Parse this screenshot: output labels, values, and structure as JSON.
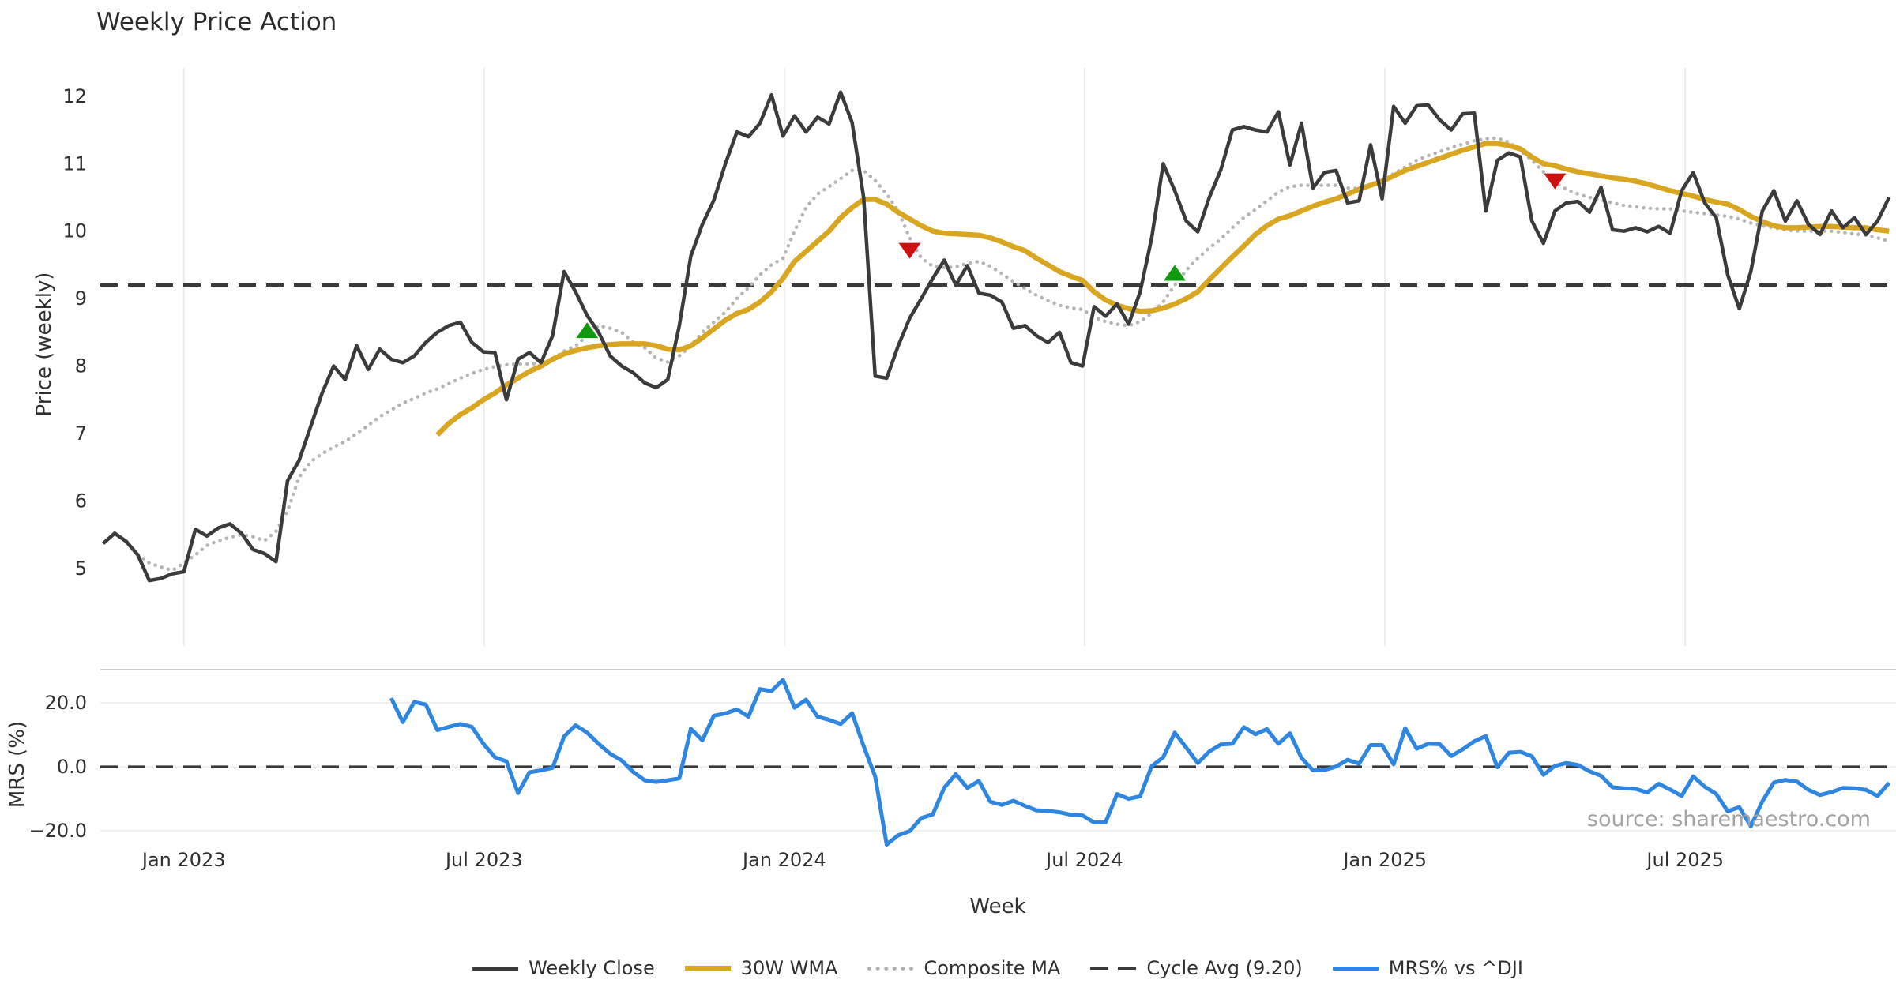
{
  "title": "Weekly Price Action",
  "watermark": "source: sharemaestro.com",
  "chart_data": {
    "type": "line",
    "x_axis": {
      "label": "Week",
      "unit": "weeks since first plotted week (late 2022)",
      "tick_labels": [
        "Jan 2023",
        "Jul 2023",
        "Jan 2024",
        "Jul 2024",
        "Jan 2025",
        "Jul 2025"
      ],
      "tick_weeks": [
        7.0,
        33.06,
        59.12,
        85.18,
        111.25,
        137.31
      ],
      "range_weeks": [
        -0.25,
        155.6
      ],
      "grid_color": "#ececec"
    },
    "price_panel": {
      "ylabel": "Price (weekly)",
      "ylim": [
        3.85,
        12.42
      ],
      "yticks": [
        12,
        11,
        10,
        9,
        8,
        7,
        6,
        5
      ],
      "grid": "vertical-only",
      "series": [
        {
          "name": "Weekly Close",
          "color": "#3b3b3b",
          "style": "solid",
          "width": 4.5,
          "start_week": 0,
          "values": [
            5.37,
            5.52,
            5.4,
            5.2,
            4.82,
            4.85,
            4.92,
            4.95,
            5.58,
            5.48,
            5.6,
            5.66,
            5.52,
            5.28,
            5.22,
            5.1,
            6.3,
            6.6,
            7.1,
            7.6,
            8.0,
            7.8,
            8.3,
            7.95,
            8.25,
            8.1,
            8.05,
            8.15,
            8.35,
            8.5,
            8.6,
            8.65,
            8.35,
            8.21,
            8.2,
            7.5,
            8.1,
            8.2,
            8.05,
            8.45,
            9.4,
            9.1,
            8.75,
            8.5,
            8.15,
            8.0,
            7.9,
            7.75,
            7.68,
            7.8,
            8.6,
            9.63,
            10.1,
            10.46,
            11.0,
            11.47,
            11.4,
            11.6,
            12.02,
            11.41,
            11.71,
            11.47,
            11.69,
            11.59,
            12.06,
            11.61,
            10.5,
            7.85,
            7.82,
            8.3,
            8.71,
            9.0,
            9.3,
            9.57,
            9.2,
            9.49,
            9.08,
            9.05,
            8.95,
            8.56,
            8.6,
            8.45,
            8.35,
            8.5,
            8.05,
            8.0,
            8.88,
            8.74,
            8.92,
            8.62,
            9.1,
            9.9,
            11.0,
            10.6,
            10.15,
            9.99,
            10.5,
            10.91,
            11.5,
            11.55,
            11.5,
            11.47,
            11.77,
            10.98,
            11.6,
            10.64,
            10.87,
            10.9,
            10.42,
            10.45,
            11.28,
            10.48,
            11.85,
            11.6,
            11.86,
            11.87,
            11.65,
            11.5,
            11.74,
            11.75,
            10.3,
            11.05,
            11.16,
            11.1,
            10.15,
            9.82,
            10.3,
            10.42,
            10.44,
            10.28,
            10.65,
            10.02,
            10.0,
            10.05,
            9.99,
            10.07,
            9.97,
            10.6,
            10.87,
            10.42,
            10.2,
            9.35,
            8.85,
            9.4,
            10.3,
            10.6,
            10.15,
            10.45,
            10.1,
            9.95,
            10.3,
            10.05,
            10.2,
            9.95,
            10.15,
            10.5
          ]
        },
        {
          "name": "30W WMA",
          "color": "#d9a621",
          "style": "solid",
          "width": 6.5,
          "start_week": 29,
          "values": [
            6.98,
            7.15,
            7.28,
            7.38,
            7.5,
            7.6,
            7.72,
            7.82,
            7.92,
            8.0,
            8.1,
            8.18,
            8.23,
            8.27,
            8.3,
            8.32,
            8.33,
            8.33,
            8.33,
            8.3,
            8.25,
            8.24,
            8.3,
            8.42,
            8.55,
            8.68,
            8.78,
            8.84,
            8.95,
            9.1,
            9.3,
            9.55,
            9.7,
            9.85,
            10.0,
            10.2,
            10.35,
            10.47,
            10.47,
            10.4,
            10.28,
            10.18,
            10.08,
            10.0,
            9.97,
            9.96,
            9.95,
            9.94,
            9.9,
            9.84,
            9.77,
            9.71,
            9.6,
            9.5,
            9.4,
            9.33,
            9.27,
            9.1,
            8.98,
            8.9,
            8.85,
            8.81,
            8.82,
            8.86,
            8.92,
            9.0,
            9.1,
            9.28,
            9.45,
            9.62,
            9.78,
            9.95,
            10.08,
            10.18,
            10.23,
            10.3,
            10.37,
            10.43,
            10.48,
            10.55,
            10.62,
            10.68,
            10.74,
            10.82,
            10.9,
            10.96,
            11.02,
            11.08,
            11.14,
            11.2,
            11.25,
            11.3,
            11.3,
            11.27,
            11.22,
            11.1,
            11.0,
            10.97,
            10.92,
            10.88,
            10.85,
            10.82,
            10.79,
            10.77,
            10.74,
            10.7,
            10.65,
            10.6,
            10.56,
            10.52,
            10.47,
            10.43,
            10.4,
            10.32,
            10.22,
            10.14,
            10.08,
            10.05,
            10.05,
            10.06,
            10.07,
            10.07,
            10.06,
            10.05,
            10.05,
            10.02,
            10.0
          ]
        },
        {
          "name": "Composite MA",
          "color": "#b5b5b5",
          "style": "dotted",
          "width": 4.5,
          "start_week": 3,
          "values": [
            5.2,
            5.08,
            5.02,
            4.97,
            5.08,
            5.2,
            5.34,
            5.41,
            5.46,
            5.5,
            5.47,
            5.41,
            5.55,
            5.85,
            6.35,
            6.58,
            6.7,
            6.8,
            6.88,
            7.0,
            7.12,
            7.25,
            7.35,
            7.45,
            7.52,
            7.6,
            7.66,
            7.74,
            7.82,
            7.89,
            7.95,
            7.99,
            8.02,
            8.03,
            8.03,
            8.04,
            8.1,
            8.22,
            8.3,
            8.45,
            8.6,
            8.56,
            8.5,
            8.35,
            8.27,
            8.12,
            8.06,
            8.15,
            8.3,
            8.5,
            8.65,
            8.8,
            9.0,
            9.16,
            9.35,
            9.5,
            9.6,
            10.0,
            10.35,
            10.55,
            10.66,
            10.78,
            10.9,
            10.9,
            10.75,
            10.55,
            10.3,
            9.9,
            9.6,
            9.48,
            9.46,
            9.47,
            9.52,
            9.55,
            9.48,
            9.37,
            9.25,
            9.15,
            9.05,
            8.97,
            8.9,
            8.86,
            8.84,
            8.72,
            8.66,
            8.62,
            8.6,
            8.66,
            8.78,
            8.95,
            9.2,
            9.42,
            9.6,
            9.75,
            9.88,
            10.05,
            10.2,
            10.32,
            10.45,
            10.58,
            10.66,
            10.68,
            10.68,
            10.68,
            10.68,
            10.64,
            10.63,
            10.67,
            10.75,
            10.85,
            10.95,
            11.05,
            11.12,
            11.18,
            11.24,
            11.29,
            11.34,
            11.37,
            11.38,
            11.32,
            11.2,
            11.05,
            10.88,
            10.72,
            10.62,
            10.55,
            10.5,
            10.46,
            10.42,
            10.38,
            10.36,
            10.34,
            10.33,
            10.33,
            10.3,
            10.28,
            10.26,
            10.24,
            10.22,
            10.18,
            10.12,
            10.08,
            10.05,
            10.02,
            10.0,
            10.0,
            10.0,
            10.0,
            9.98,
            9.96,
            9.94,
            9.9,
            9.85
          ]
        },
        {
          "name": "Cycle Avg (9.20)",
          "color": "#3a3a3a",
          "style": "dashed",
          "width": 4,
          "value": 9.2
        }
      ],
      "signals": [
        {
          "week": 42,
          "price": 8.52,
          "type": "buy",
          "color": "#119910"
        },
        {
          "week": 70,
          "price": 9.72,
          "type": "sell",
          "color": "#cc1111"
        },
        {
          "week": 93,
          "price": 9.37,
          "type": "buy",
          "color": "#119910"
        },
        {
          "week": 126,
          "price": 10.75,
          "type": "sell",
          "color": "#cc1111"
        }
      ]
    },
    "mrs_panel": {
      "ylabel": "MRS (%)",
      "ylim": [
        -26.9,
        30.4
      ],
      "yticks": [
        20,
        0,
        -20
      ],
      "ytick_labels": [
        "20.0",
        "0.0",
        "−20.0"
      ],
      "grid": "horizontal-only",
      "zero_line": {
        "style": "dashed",
        "color": "#3a3a3a",
        "value": 0
      },
      "series": [
        {
          "name": "MRS% vs ^DJI",
          "color": "#2e86e0",
          "style": "solid",
          "width": 5,
          "start_week": 25,
          "values": [
            21.5,
            14.0,
            20.3,
            19.5,
            11.5,
            12.5,
            13.4,
            12.5,
            7.2,
            3.0,
            1.7,
            -8.2,
            -1.7,
            -1.1,
            -0.3,
            9.5,
            13.0,
            10.7,
            7.2,
            4.1,
            2.0,
            -1.6,
            -4.2,
            -4.7,
            -4.2,
            -3.6,
            11.9,
            8.3,
            16.0,
            16.7,
            18.0,
            15.7,
            24.3,
            23.7,
            27.2,
            18.5,
            21.0,
            15.7,
            14.7,
            13.4,
            16.8,
            6.5,
            -3.0,
            -24.3,
            -21.4,
            -20.1,
            -16.0,
            -14.9,
            -6.5,
            -2.3,
            -6.6,
            -4.4,
            -10.9,
            -11.9,
            -10.6,
            -12.2,
            -13.6,
            -13.8,
            -14.2,
            -15.0,
            -15.2,
            -17.4,
            -17.3,
            -8.5,
            -10.0,
            -9.2,
            0.2,
            3.0,
            10.7,
            6.0,
            1.2,
            4.8,
            7.0,
            7.2,
            12.4,
            10.2,
            11.8,
            7.2,
            10.5,
            2.8,
            -1.1,
            -1.0,
            0.1,
            2.2,
            1.0,
            6.8,
            6.8,
            0.8,
            12.1,
            5.7,
            7.2,
            7.1,
            3.4,
            5.5,
            8.0,
            9.6,
            -0.1,
            4.4,
            4.7,
            3.3,
            -2.5,
            0.3,
            1.2,
            0.6,
            -1.4,
            -2.8,
            -6.4,
            -6.7,
            -6.9,
            -8.0,
            -5.3,
            -7.1,
            -9.1,
            -3.0,
            -6.2,
            -8.5,
            -13.9,
            -12.6,
            -18.6,
            -10.8,
            -4.9,
            -4.1,
            -4.6,
            -7.2,
            -8.8,
            -7.9,
            -6.6,
            -6.7,
            -7.2,
            -9.1,
            -5.0
          ]
        }
      ]
    },
    "legend": [
      {
        "label": "Weekly Close",
        "swatch": "solid-dark"
      },
      {
        "label": "30W WMA",
        "swatch": "solid-gold"
      },
      {
        "label": "Composite MA",
        "swatch": "dotted-gray"
      },
      {
        "label": "Cycle Avg (9.20)",
        "swatch": "dashed-dark"
      },
      {
        "label": "MRS% vs ^DJI",
        "swatch": "solid-blue"
      }
    ]
  }
}
